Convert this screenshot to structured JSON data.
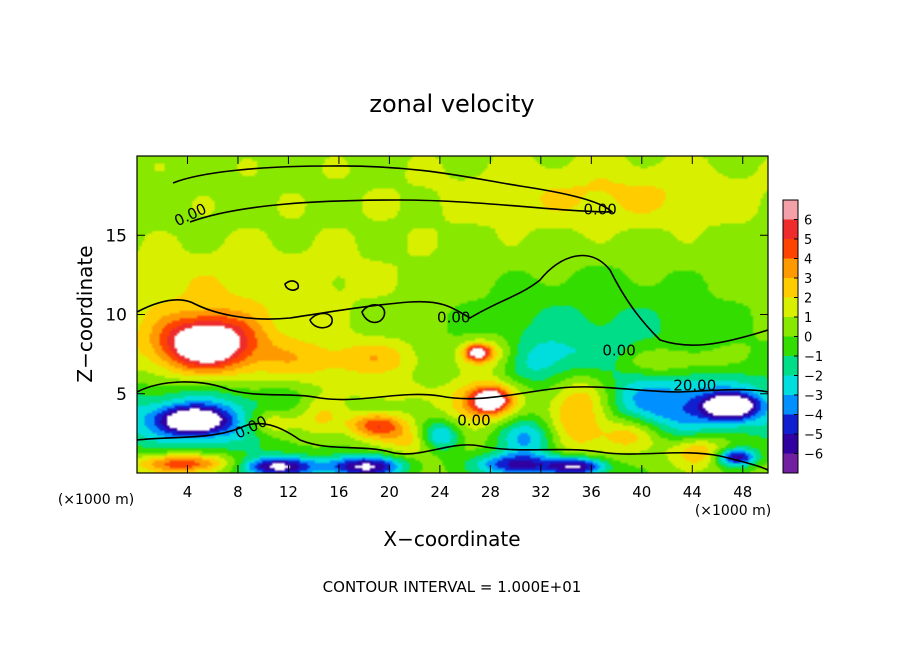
{
  "chart_data": {
    "type": "heatmap",
    "title": "zonal velocity",
    "xlabel": "X−coordinate",
    "ylabel": "Z−coordinate",
    "x_unit_left": "(×1000 m)",
    "x_unit_right": "(×1000 m)",
    "footer": "CONTOUR INTERVAL = 1.000E+01",
    "xlim": [
      0,
      50
    ],
    "ylim": [
      0,
      20
    ],
    "x_ticks": [
      4,
      8,
      12,
      16,
      20,
      24,
      28,
      32,
      36,
      40,
      44,
      48
    ],
    "y_ticks": [
      5,
      10,
      15
    ],
    "colorbar": {
      "ticks": [
        6,
        5,
        4,
        3,
        2,
        1,
        0,
        -1,
        -2,
        -3,
        -4,
        -5,
        -6
      ],
      "colors": [
        "#f4a0a8",
        "#ee2c2c",
        "#ff4400",
        "#ff9900",
        "#ffcc00",
        "#d8f000",
        "#88e800",
        "#33dd00",
        "#00dd88",
        "#00dddd",
        "#0090ff",
        "#1020d0",
        "#3000a0",
        "#7020a0"
      ]
    },
    "contour_labels": [
      {
        "text": "0.00",
        "x": 4.4,
        "z": 16.0,
        "rotate": -25
      },
      {
        "text": "0.00",
        "x": 36.7,
        "z": 16.3,
        "rotate": 0
      },
      {
        "text": "0.00",
        "x": 25.1,
        "z": 9.5,
        "rotate": 0
      },
      {
        "text": "0.00",
        "x": 38.2,
        "z": 7.4,
        "rotate": 0
      },
      {
        "text": "20.00",
        "x": 44.2,
        "z": 5.2,
        "rotate": 0
      },
      {
        "text": "0.00",
        "x": 26.7,
        "z": 3.0,
        "rotate": 0
      },
      {
        "text": "0.00",
        "x": 9.2,
        "z": 2.6,
        "rotate": -25
      }
    ],
    "field": [
      {
        "x": 25,
        "z": 17,
        "rx": 50,
        "rz": 10,
        "v": 0.5
      },
      {
        "x": 38,
        "z": 17.5,
        "rx": 14,
        "rz": 2.5,
        "v": 1.4
      },
      {
        "x": 8,
        "z": 12,
        "rx": 16,
        "rz": 3,
        "v": 1.0
      },
      {
        "x": 36,
        "z": 9,
        "rx": 14,
        "rz": 5,
        "v": -1.8
      },
      {
        "x": 33,
        "z": 7,
        "rx": 6,
        "rz": 2,
        "v": -2.4
      },
      {
        "x": 5.5,
        "z": 8,
        "rx": 7,
        "rz": 3.2,
        "v": 3.5
      },
      {
        "x": 5.5,
        "z": 8.2,
        "rx": 4,
        "rz": 1.8,
        "v": 5.4
      },
      {
        "x": 13,
        "z": 7,
        "rx": 5,
        "rz": 2,
        "v": 1.6
      },
      {
        "x": 19,
        "z": 7.2,
        "rx": 5,
        "rz": 1.6,
        "v": 2.2
      },
      {
        "x": 28,
        "z": 7.5,
        "rx": 3,
        "rz": 1.4,
        "v": 3.2
      },
      {
        "x": 27,
        "z": 7.6,
        "rx": 1.2,
        "rz": 0.6,
        "v": 6.0
      },
      {
        "x": 42,
        "z": 7,
        "rx": 5,
        "rz": 1.2,
        "v": 2.0
      },
      {
        "x": 5,
        "z": 3.5,
        "rx": 10,
        "rz": 2.8,
        "v": -4.0
      },
      {
        "x": 4.5,
        "z": 3.3,
        "rx": 3,
        "rz": 1.0,
        "v": -6.5
      },
      {
        "x": 44,
        "z": 4.2,
        "rx": 12,
        "rz": 2.5,
        "v": -4.2
      },
      {
        "x": 47,
        "z": 4.2,
        "rx": 2.5,
        "rz": 0.9,
        "v": -6.5
      },
      {
        "x": 10.5,
        "z": 3.2,
        "rx": 2.6,
        "rz": 1.2,
        "v": 3.3
      },
      {
        "x": 14.5,
        "z": 3.5,
        "rx": 2.5,
        "rz": 1.6,
        "v": 2.6
      },
      {
        "x": 19,
        "z": 3.0,
        "rx": 3,
        "rz": 1.0,
        "v": 4.4
      },
      {
        "x": 19.5,
        "z": 5.2,
        "rx": 3,
        "rz": 0.9,
        "v": 1.8
      },
      {
        "x": 27.5,
        "z": 4.6,
        "rx": 3.6,
        "rz": 1.8,
        "v": 4.6
      },
      {
        "x": 28,
        "z": 4.6,
        "rx": 1.5,
        "rz": 0.8,
        "v": 6.5
      },
      {
        "x": 35,
        "z": 4.2,
        "rx": 3.6,
        "rz": 3.4,
        "v": 4.6
      },
      {
        "x": 24,
        "z": 2.3,
        "rx": 2,
        "rz": 1.2,
        "v": -4.2
      },
      {
        "x": 31,
        "z": 2.2,
        "rx": 3,
        "rz": 1.6,
        "v": -3.5
      },
      {
        "x": 4,
        "z": 0.6,
        "rx": 5,
        "rz": 0.8,
        "v": 5.0
      },
      {
        "x": 11,
        "z": 0.4,
        "rx": 4,
        "rz": 0.8,
        "v": -6.5
      },
      {
        "x": 18,
        "z": 0.4,
        "rx": 4,
        "rz": 0.9,
        "v": -6.5
      },
      {
        "x": 30,
        "z": 0.5,
        "rx": 4,
        "rz": 0.9,
        "v": -5.5
      },
      {
        "x": 35,
        "z": 0.4,
        "rx": 3,
        "rz": 0.8,
        "v": -6.5
      },
      {
        "x": 44.5,
        "z": 1.4,
        "rx": 3,
        "rz": 1.2,
        "v": 3.0
      },
      {
        "x": 47.5,
        "z": 1.0,
        "rx": 2,
        "rz": 0.7,
        "v": -6.0
      },
      {
        "x": 22,
        "z": 2.0,
        "rx": 3,
        "rz": 1.2,
        "v": 2.2
      },
      {
        "x": 39,
        "z": 2.5,
        "rx": 3,
        "rz": 1.5,
        "v": 2.8
      }
    ]
  }
}
